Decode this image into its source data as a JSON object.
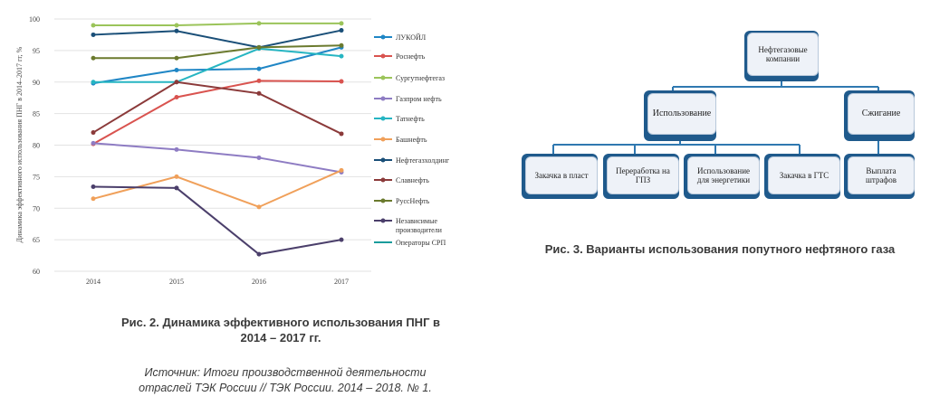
{
  "chart_data": {
    "type": "line",
    "ylabel": "Динамика эффективного использования ПНГ в 2014–2017 гг, %",
    "x": [
      "2014",
      "2015",
      "2016",
      "2017"
    ],
    "y_ticks": [
      "60",
      "65",
      "70",
      "75",
      "80",
      "85",
      "90",
      "95",
      "100"
    ],
    "ylim": [
      60,
      100
    ],
    "grid": "horizontal",
    "legend_position": "right",
    "series": [
      {
        "name": "ЛУКОЙЛ",
        "color": "#1f86c5",
        "values": [
          89.8,
          91.9,
          92.1,
          95.5
        ]
      },
      {
        "name": "Роснефть",
        "color": "#d9534f",
        "values": [
          80.2,
          87.6,
          90.2,
          90.1
        ]
      },
      {
        "name": "Сургутнефтегаз",
        "color": "#9bc45a",
        "values": [
          99.0,
          99.0,
          99.3,
          99.3
        ]
      },
      {
        "name": "Газпром нефть",
        "color": "#8e7cc3",
        "values": [
          80.3,
          79.3,
          78.0,
          75.7
        ]
      },
      {
        "name": "Татнефть",
        "color": "#26b5c2",
        "values": [
          90.0,
          90.0,
          95.3,
          94.1
        ]
      },
      {
        "name": "Башнефть",
        "color": "#f0a05a",
        "values": [
          71.5,
          75.0,
          70.2,
          76.0
        ]
      },
      {
        "name": "Нефтегазхолдинг",
        "color": "#1a4f78",
        "values": [
          97.5,
          98.1,
          95.5,
          98.2
        ]
      },
      {
        "name": "Славнефть",
        "color": "#8b3a3a",
        "values": [
          82.0,
          90.0,
          88.2,
          81.8
        ]
      },
      {
        "name": "РуссНефть",
        "color": "#6b7a2e",
        "values": [
          93.8,
          93.8,
          95.5,
          95.8
        ]
      },
      {
        "name": "Независимые производители",
        "color": "#4b3f6b",
        "values": [
          73.4,
          73.2,
          62.7,
          65.0
        ]
      },
      {
        "name": "Операторы СРП",
        "color": "#1a9c9c",
        "values": [
          null,
          null,
          null,
          null
        ]
      }
    ]
  },
  "captions": {
    "fig2_title": "Рис. 2. Динамика эффективного использования ПНГ в 2014 – 2017 гг.",
    "fig2_source": "Источник: Итоги производственной деятельности отраслей ТЭК России // ТЭК России. 2014 – 2018. № 1.",
    "fig3_title": "Рис. 3. Варианты использования попутного нефтяного газа"
  },
  "diagram": {
    "root": "Нефтегазовые компании",
    "usage": "Использование",
    "flaring": "Сжигание",
    "usage_children": [
      "Закачка в пласт",
      "Переработка на ГПЗ",
      "Использование для энергетики",
      "Закачка в ГТС"
    ],
    "flaring_children": [
      "Выплата штрафов"
    ],
    "colors": {
      "box_fill": "#eef2f8",
      "box_shadow": "#1f5a8c",
      "connector": "#2f78b0"
    }
  }
}
